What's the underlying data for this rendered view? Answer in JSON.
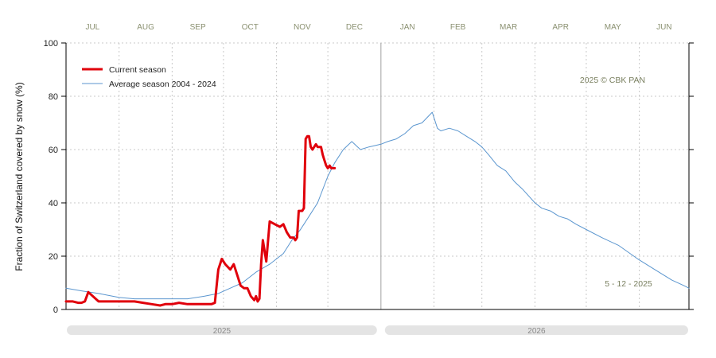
{
  "chart_data": {
    "type": "line",
    "ylabel": "Fraction of  Switzerland  covered by snow (%)",
    "ylim": [
      0,
      100
    ],
    "yticks": [
      0,
      20,
      40,
      60,
      80,
      100
    ],
    "months": [
      "JUL",
      "AUG",
      "SEP",
      "OCT",
      "NOV",
      "DEC",
      "JAN",
      "FEB",
      "MAR",
      "APR",
      "MAY",
      "JUN"
    ],
    "x_range": [
      "2025-07-01",
      "2026-06-30"
    ],
    "years": [
      "2025",
      "2026"
    ],
    "note_top": "2025  © CBK PAN",
    "note_bottom": "5 - 12 - 2025",
    "grid": true,
    "legend_position": "top-left",
    "series": [
      {
        "name": "Current season",
        "color": "#e0000b",
        "x": [
          "2025-07-01",
          "2025-07-05",
          "2025-07-08",
          "2025-07-10",
          "2025-07-12",
          "2025-07-14",
          "2025-07-20",
          "2025-07-25",
          "2025-07-28",
          "2025-08-05",
          "2025-08-10",
          "2025-08-15",
          "2025-08-20",
          "2025-08-25",
          "2025-08-28",
          "2025-09-01",
          "2025-09-05",
          "2025-09-10",
          "2025-09-15",
          "2025-09-20",
          "2025-09-24",
          "2025-09-26",
          "2025-09-28",
          "2025-09-30",
          "2025-10-02",
          "2025-10-05",
          "2025-10-07",
          "2025-10-09",
          "2025-10-11",
          "2025-10-13",
          "2025-10-15",
          "2025-10-17",
          "2025-10-19",
          "2025-10-20",
          "2025-10-21",
          "2025-10-22",
          "2025-10-23",
          "2025-10-24",
          "2025-10-26",
          "2025-10-28",
          "2025-10-31",
          "2025-11-03",
          "2025-11-05",
          "2025-11-07",
          "2025-11-09",
          "2025-11-11",
          "2025-11-12",
          "2025-11-13",
          "2025-11-14",
          "2025-11-15",
          "2025-11-16",
          "2025-11-17",
          "2025-11-18",
          "2025-11-19",
          "2025-11-20",
          "2025-11-21",
          "2025-11-22",
          "2025-11-24",
          "2025-11-25",
          "2025-11-27",
          "2025-11-28",
          "2025-11-29",
          "2025-11-30",
          "2025-12-01",
          "2025-12-02",
          "2025-12-03",
          "2025-12-04",
          "2025-12-05"
        ],
        "values": [
          3,
          3,
          2.5,
          2.5,
          3,
          6.5,
          3,
          3,
          3,
          3,
          3,
          2.5,
          2,
          1.5,
          2,
          2,
          2.5,
          2,
          2,
          2,
          2,
          2.5,
          15,
          19,
          17,
          15,
          17,
          13,
          9,
          8,
          8,
          5,
          3.5,
          5,
          3,
          4,
          17,
          26,
          18,
          33,
          32,
          31,
          32,
          29,
          27,
          27,
          26,
          27,
          37,
          37,
          37,
          38,
          64,
          65,
          65,
          61,
          60,
          62,
          61,
          61,
          58,
          56,
          54,
          53,
          54,
          53,
          53,
          53
        ]
      },
      {
        "name": "Average season 2004 - 2024",
        "color": "#5b96cf",
        "x": [
          "2025-07-01",
          "2025-07-10",
          "2025-07-20",
          "2025-08-01",
          "2025-08-10",
          "2025-08-20",
          "2025-09-01",
          "2025-09-10",
          "2025-09-20",
          "2025-09-28",
          "2025-10-05",
          "2025-10-12",
          "2025-10-20",
          "2025-10-28",
          "2025-11-05",
          "2025-11-10",
          "2025-11-15",
          "2025-11-20",
          "2025-11-25",
          "2025-12-01",
          "2025-12-05",
          "2025-12-10",
          "2025-12-15",
          "2025-12-20",
          "2025-12-25",
          "2026-01-01",
          "2026-01-05",
          "2026-01-10",
          "2026-01-15",
          "2026-01-20",
          "2026-01-25",
          "2026-01-31",
          "2026-02-03",
          "2026-02-05",
          "2026-02-10",
          "2026-02-15",
          "2026-02-20",
          "2026-02-25",
          "2026-03-01",
          "2026-03-05",
          "2026-03-10",
          "2026-03-15",
          "2026-03-20",
          "2026-03-25",
          "2026-04-01",
          "2026-04-05",
          "2026-04-10",
          "2026-04-15",
          "2026-04-20",
          "2026-04-25",
          "2026-05-01",
          "2026-05-10",
          "2026-05-20",
          "2026-05-31",
          "2026-06-10",
          "2026-06-20",
          "2026-06-27",
          "2026-06-30"
        ],
        "values": [
          8,
          7,
          6,
          4.5,
          4,
          4,
          4,
          4,
          5,
          6,
          8,
          10,
          14,
          17,
          21,
          26,
          30,
          35,
          40,
          50,
          55,
          60,
          63,
          60,
          61,
          62,
          63,
          64,
          66,
          69,
          70,
          74,
          68,
          67,
          68,
          67,
          65,
          63,
          61,
          58,
          54,
          52,
          48,
          45,
          40,
          38,
          37,
          35,
          34,
          32,
          30,
          27,
          24,
          19,
          15,
          11,
          9,
          8
        ]
      }
    ]
  }
}
